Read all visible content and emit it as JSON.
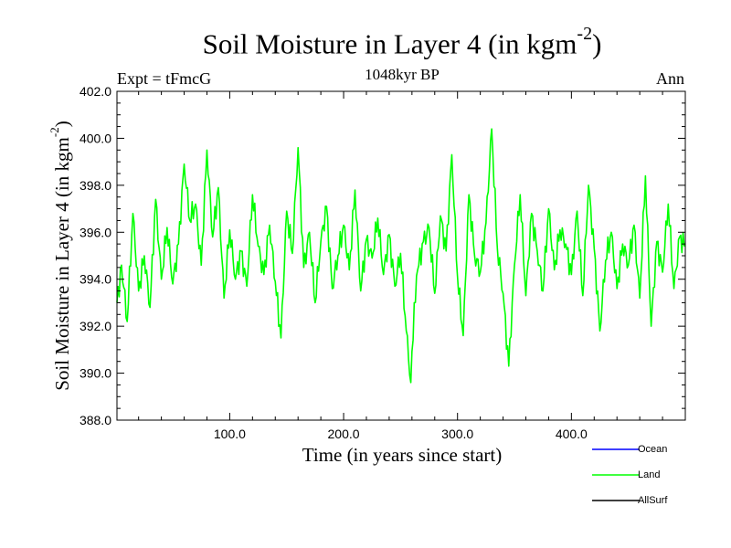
{
  "chart_data": {
    "type": "line",
    "title": "Soil Moisture in Layer 4 (in kgm",
    "title_sup": "-2",
    "title_close": ")",
    "experiment": "Expt = tFmcG",
    "period": "1048kyr BP",
    "season": "Ann",
    "xlabel": "Time (in years since start)",
    "ylabel": "Soil Moisture in Layer 4 (in kgm",
    "ylabel_sup": "-2",
    "ylabel_close": ")",
    "xlim": [
      1,
      500
    ],
    "ylim": [
      388.0,
      402.0
    ],
    "x_ticks": [
      100.0,
      200.0,
      300.0,
      400.0
    ],
    "x_tick_labels": [
      "100.0",
      "200.0",
      "300.0",
      "400.0"
    ],
    "y_ticks": [
      388.0,
      390.0,
      392.0,
      394.0,
      396.0,
      398.0,
      400.0,
      402.0
    ],
    "y_tick_labels": [
      "388.0",
      "390.0",
      "392.0",
      "394.0",
      "396.0",
      "398.0",
      "400.0",
      "402.0"
    ],
    "legend": [
      {
        "name": "Ocean",
        "color": "#0000ff"
      },
      {
        "name": "Land",
        "color": "#00ff00"
      },
      {
        "name": "AllSurf",
        "color": "#000000"
      }
    ],
    "series": [
      {
        "name": "Land",
        "color": "#00ff00",
        "x": [
          1,
          5,
          10,
          15,
          20,
          25,
          30,
          35,
          40,
          45,
          50,
          55,
          60,
          65,
          70,
          75,
          80,
          85,
          90,
          95,
          100,
          105,
          110,
          115,
          120,
          125,
          130,
          135,
          140,
          145,
          150,
          155,
          160,
          165,
          170,
          175,
          180,
          185,
          190,
          195,
          200,
          205,
          210,
          215,
          220,
          225,
          230,
          235,
          240,
          245,
          250,
          255,
          259,
          262,
          265,
          270,
          275,
          280,
          285,
          290,
          295,
          300,
          305,
          310,
          315,
          320,
          325,
          330,
          335,
          340,
          345,
          350,
          355,
          360,
          365,
          370,
          375,
          380,
          385,
          390,
          395,
          400,
          405,
          410,
          415,
          420,
          425,
          430,
          435,
          440,
          445,
          450,
          455,
          460,
          465,
          470,
          475,
          480,
          485,
          490,
          495,
          500
        ],
        "values": [
          393.0,
          394.6,
          392.2,
          396.8,
          393.5,
          395.0,
          392.8,
          397.4,
          394.0,
          396.2,
          393.8,
          395.5,
          398.9,
          396.5,
          397.2,
          394.6,
          399.5,
          395.8,
          397.9,
          393.2,
          396.1,
          394.0,
          395.2,
          393.7,
          397.6,
          395.4,
          394.2,
          396.3,
          393.9,
          391.5,
          396.9,
          395.1,
          399.6,
          394.5,
          396.0,
          393.0,
          395.6,
          397.1,
          393.6,
          395.0,
          396.3,
          394.4,
          397.8,
          393.5,
          395.7,
          394.9,
          396.6,
          394.2,
          395.9,
          393.7,
          395.1,
          391.8,
          389.6,
          393.0,
          394.4,
          395.6,
          396.2,
          393.4,
          396.7,
          395.2,
          399.3,
          394.1,
          391.6,
          397.6,
          395.0,
          394.3,
          396.4,
          400.4,
          395.3,
          393.4,
          390.3,
          394.6,
          397.6,
          393.3,
          396.8,
          395.2,
          393.5,
          397.0,
          394.4,
          396.1,
          395.5,
          394.2,
          396.9,
          393.3,
          398.0,
          395.3,
          391.8,
          394.8,
          396.0,
          393.6,
          395.5,
          394.6,
          396.3,
          393.2,
          398.4,
          392.0,
          395.6,
          394.3,
          397.2,
          393.6,
          395.8,
          395.4
        ]
      }
    ]
  }
}
